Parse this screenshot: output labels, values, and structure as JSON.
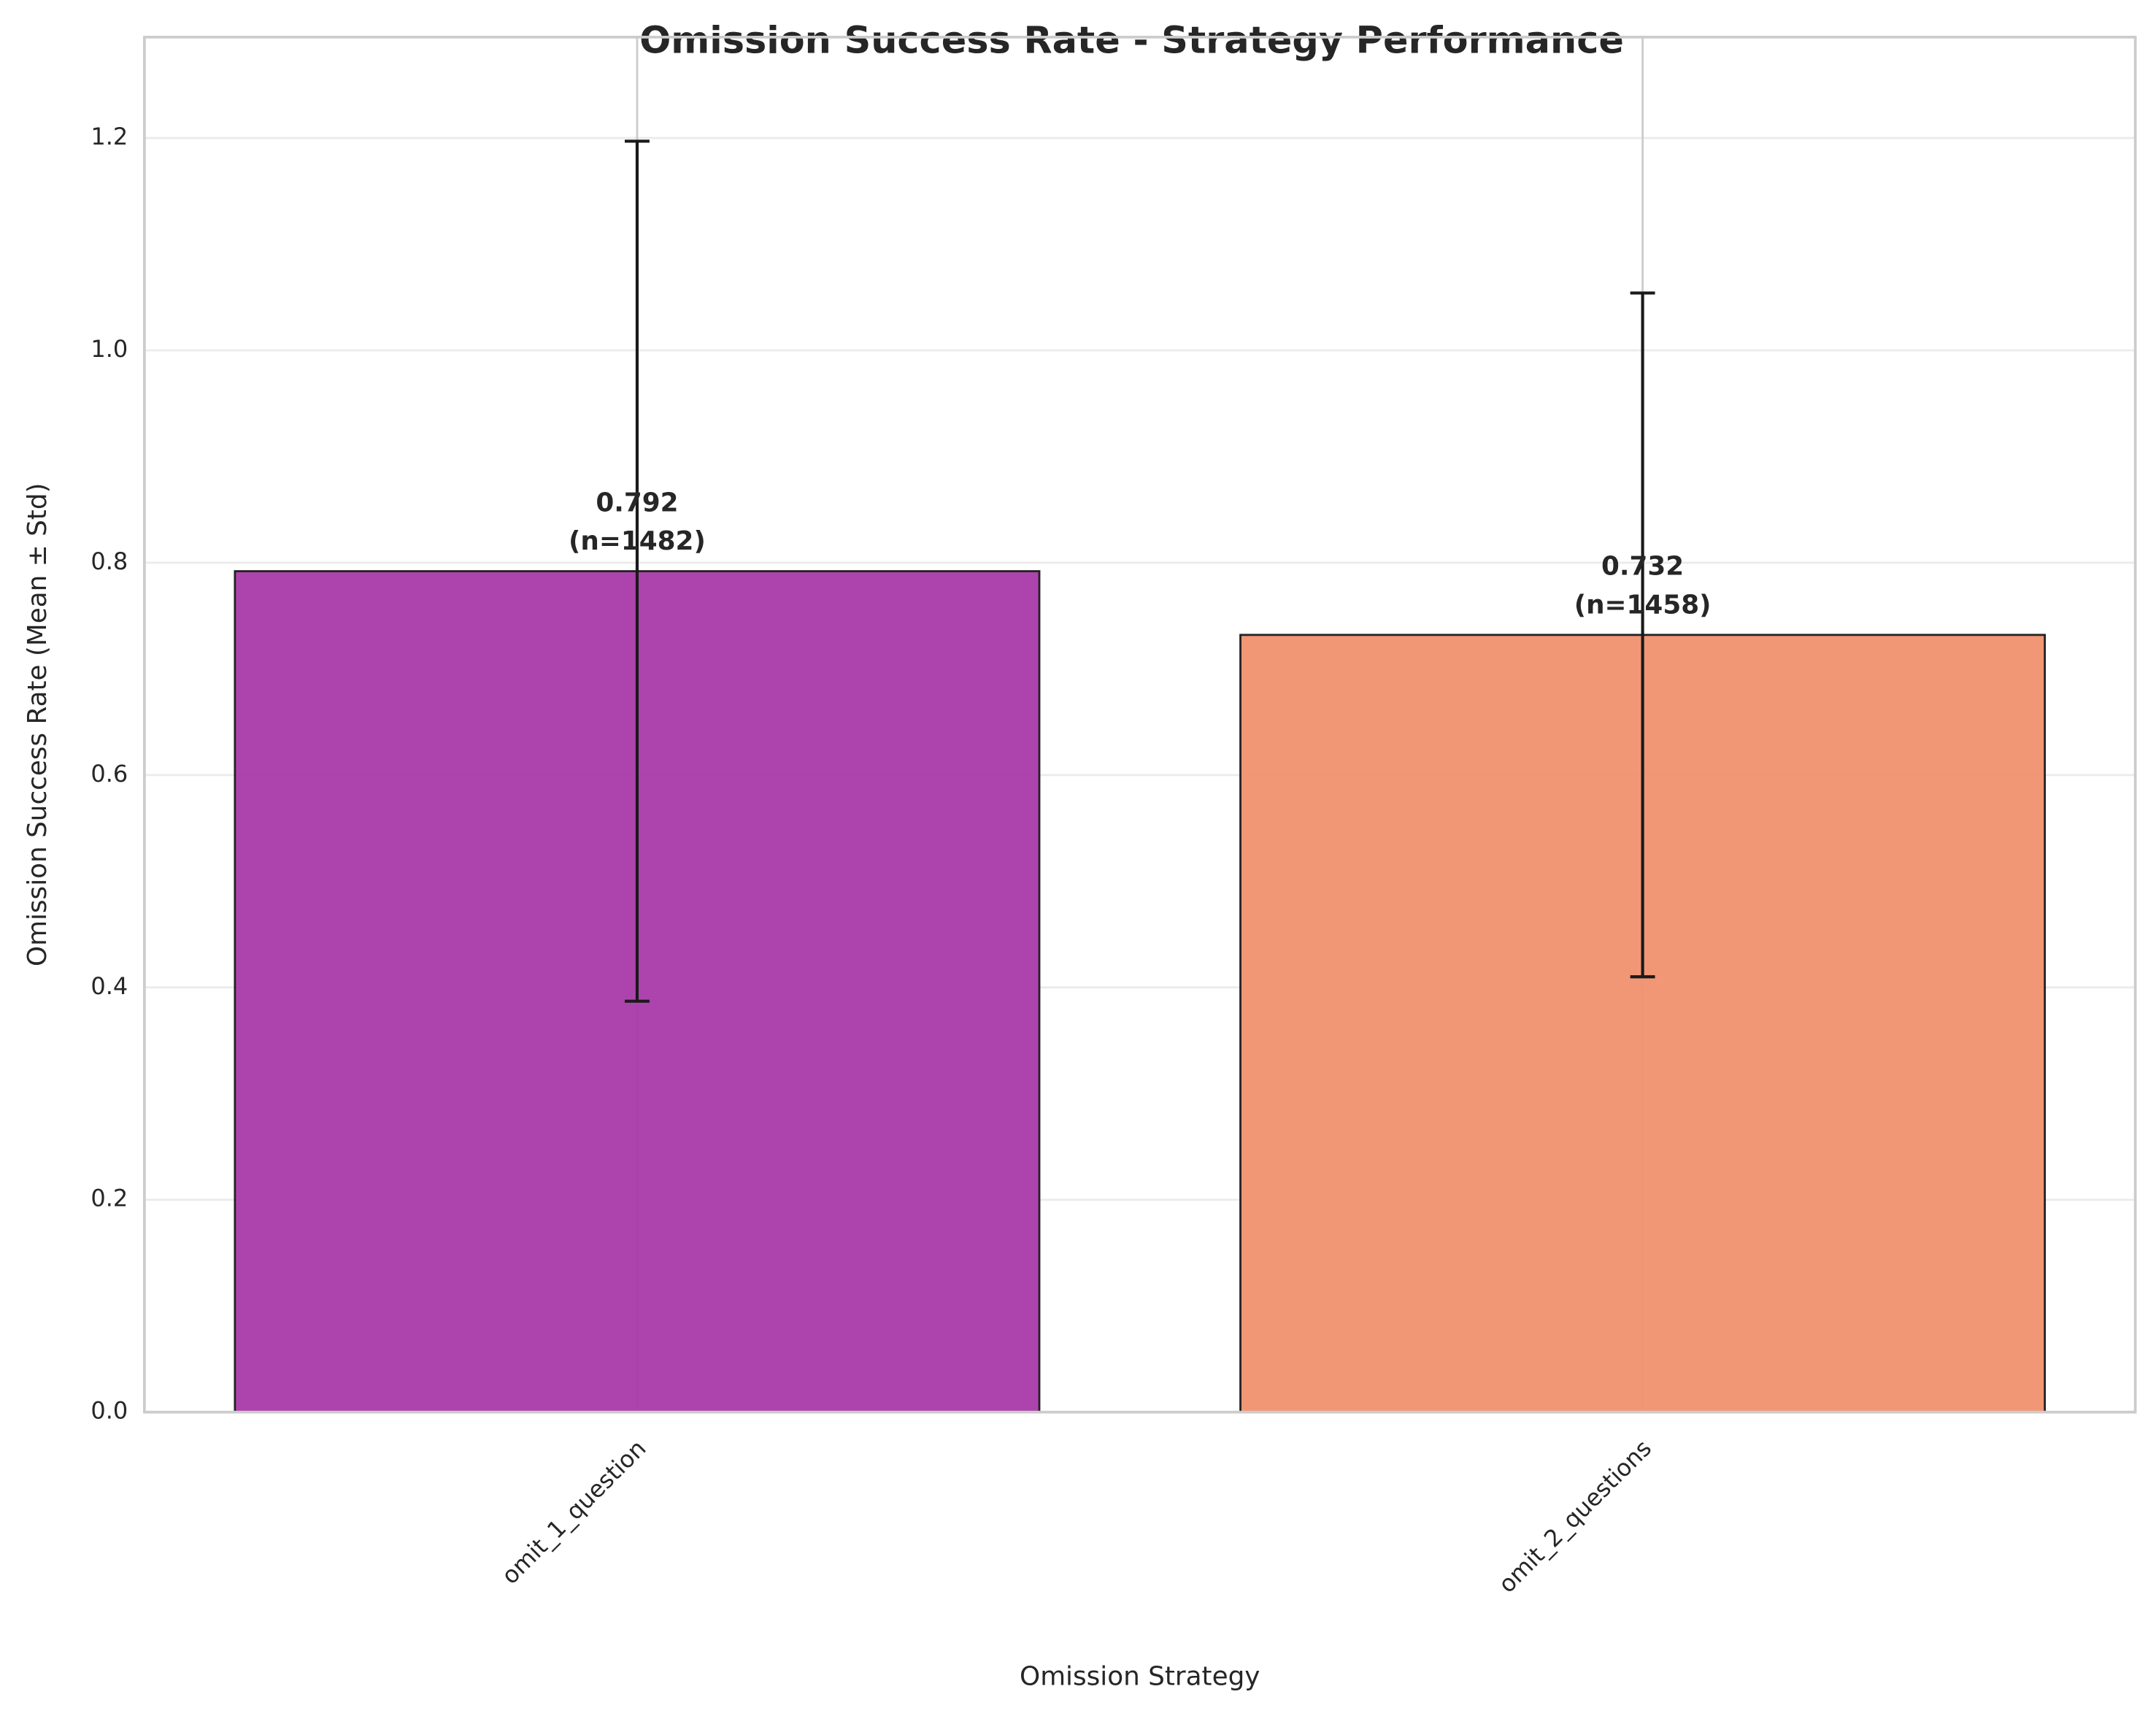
{
  "chart_data": {
    "type": "bar",
    "title": "Omission Success Rate - Strategy Performance",
    "x_label": "Omission Strategy",
    "y_label": "Omission Success Rate (Mean ± Std)",
    "categories": [
      "omit_1_question",
      "omit_2_questions"
    ],
    "values": [
      0.792,
      0.732
    ],
    "value_labels": [
      "0.792",
      "0.732"
    ],
    "sample_labels": [
      "(n=1482)",
      "(n=1458)"
    ],
    "errors": [
      0.405,
      0.322
    ],
    "colors": [
      "#a93aa9",
      "#f0916f"
    ],
    "ylim": [
      0,
      1.295
    ],
    "yticks": [
      {
        "value": 0,
        "label": "0.0"
      },
      0.2,
      0.4,
      0.6,
      0.8,
      {
        "value": 1,
        "label": "1.0"
      },
      1.2
    ],
    "grid": true
  }
}
